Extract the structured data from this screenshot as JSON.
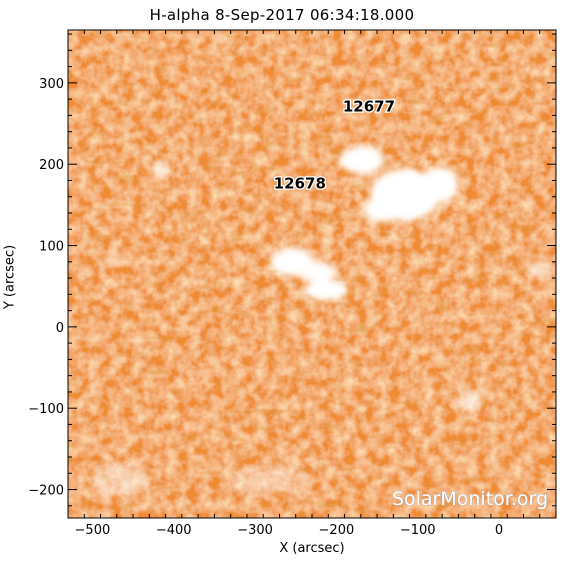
{
  "title": "H-alpha   8-Sep-2017 06:34:18.000",
  "axes": {
    "x_label": "X (arcsec)",
    "y_label": "Y (arcsec)",
    "x_range": [
      -530,
      70
    ],
    "y_range": [
      -235,
      365
    ],
    "x_ticks": [
      -500,
      -400,
      -300,
      -200,
      -100,
      0
    ],
    "y_ticks": [
      -200,
      -100,
      0,
      100,
      200,
      300
    ],
    "x_tick_labels": [
      "−500",
      "−400",
      "−300",
      "−200",
      "−100",
      "0"
    ],
    "y_tick_labels": [
      "−200",
      "−100",
      "0",
      "100",
      "200",
      "300"
    ]
  },
  "regions": [
    {
      "label": "12677",
      "x": -160,
      "y": 265
    },
    {
      "label": "12678",
      "x": -245,
      "y": 170
    }
  ],
  "watermark": "SolarMonitor.org",
  "colors": {
    "chromosphere_light": "#f7c59a",
    "chromosphere_mid": "#ef8b33",
    "chromosphere_dark": "#c65a10",
    "plage": "#ffffff"
  }
}
